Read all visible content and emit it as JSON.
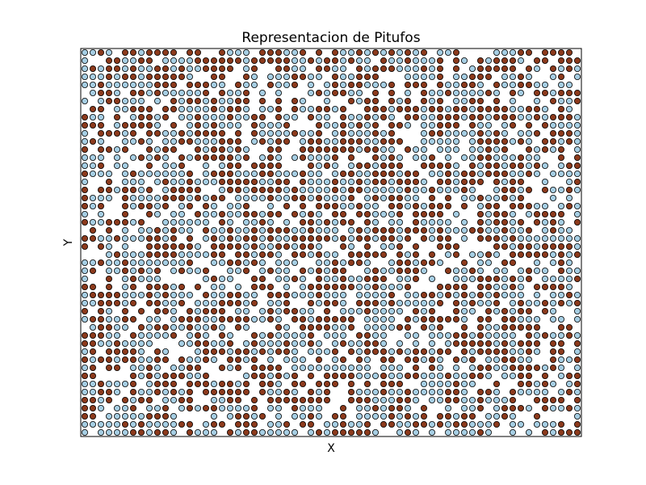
{
  "chart_data": {
    "type": "scatter",
    "title": "Representacion de Pitufos",
    "xlabel": "X",
    "ylabel": "Y",
    "xlim": [
      0,
      62
    ],
    "ylim": [
      0,
      48
    ],
    "grid": false,
    "ticks": "none",
    "legend": "none",
    "colors": {
      "brown": "#8c3a1c",
      "lightblue": "#a6cee3",
      "edge": "#000000"
    },
    "layout": "lattice of integer (x, y) cells; roughly 40% of cells hold a brown point, 40% a light-blue point, 20% are empty; pattern is random",
    "lattice": {
      "x_range": [
        0,
        61
      ],
      "y_range": [
        0,
        47
      ],
      "step": 1
    },
    "series": [
      {
        "color_key": "brown",
        "fraction": 0.4
      },
      {
        "color_key": "lightblue",
        "fraction": 0.4
      }
    ],
    "empty_fraction": 0.2
  }
}
